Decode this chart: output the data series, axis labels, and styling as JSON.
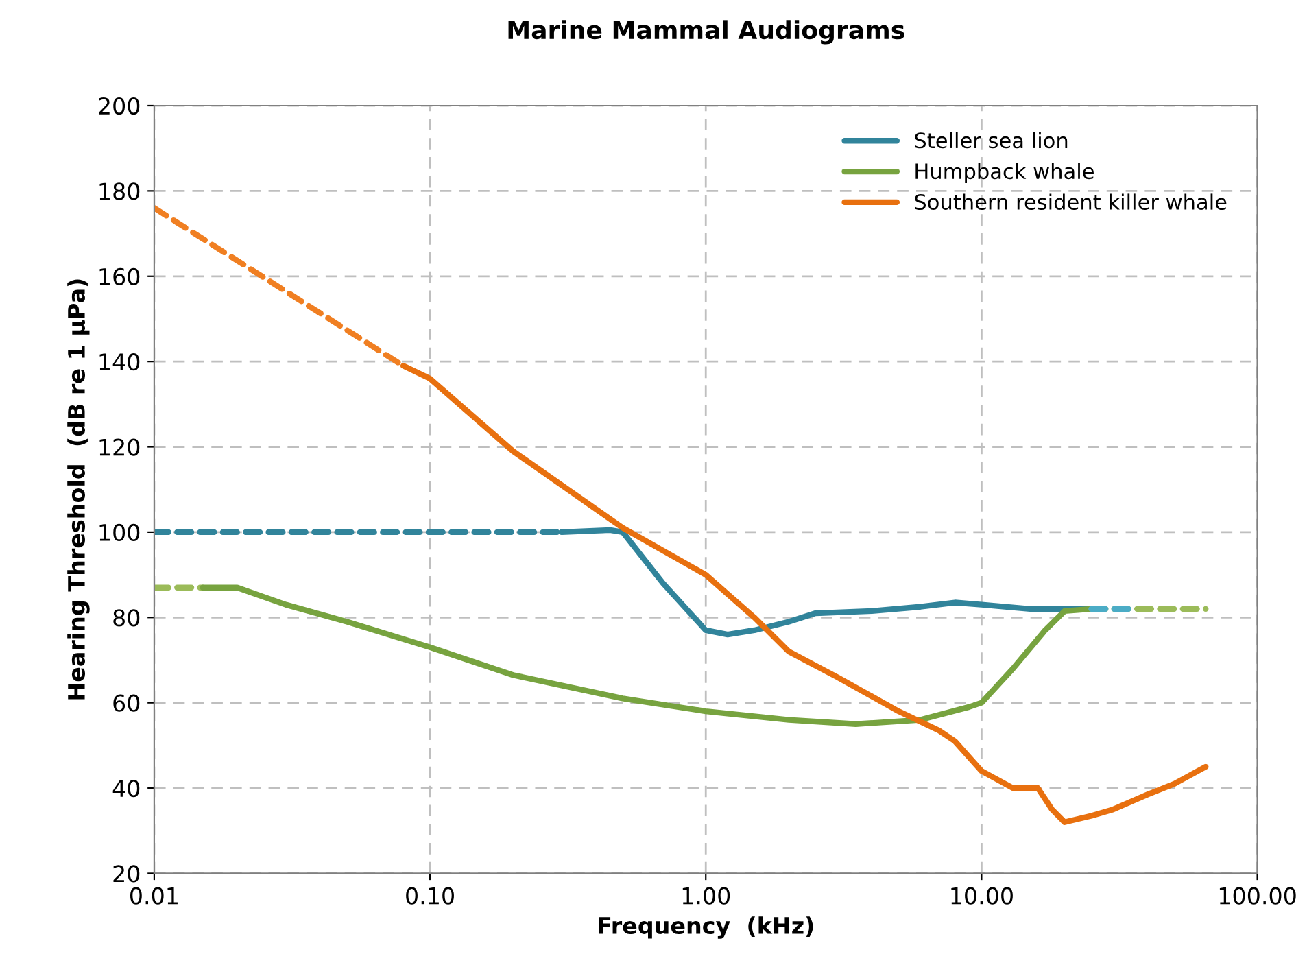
{
  "chart_data": {
    "type": "line",
    "title": "Marine Mammal Audiograms",
    "xlabel": "Frequency  (kHz)",
    "ylabel": "Hearing Threshold  (dB re 1 µPa)",
    "log": "x",
    "xlim": [
      0.01,
      100
    ],
    "xticks": [
      {
        "value": 0.01,
        "label": "0.01"
      },
      {
        "value": 0.1,
        "label": "0.10"
      },
      {
        "value": 1,
        "label": "1.00"
      },
      {
        "value": 10,
        "label": "10.00"
      },
      {
        "value": 100,
        "label": "100.00"
      }
    ],
    "ylim": [
      20,
      200
    ],
    "yticks": [
      20,
      40,
      60,
      80,
      100,
      120,
      140,
      160,
      180,
      200
    ],
    "grid": true,
    "legend": "top right",
    "series": [
      {
        "color": "#31849b",
        "line_style": "dashed",
        "x": [
          0.01,
          0.3
        ],
        "values": [
          100,
          100
        ]
      },
      {
        "name": "Steller sea lion",
        "color": "#31849b",
        "line_style": "solid",
        "x": [
          0.3,
          0.45,
          0.5,
          0.7,
          1.0,
          1.2,
          1.5,
          2,
          2.5,
          4,
          6,
          8,
          10,
          15,
          25
        ],
        "values": [
          100,
          100.5,
          100,
          88,
          77,
          76,
          77,
          79,
          81,
          81.5,
          82.5,
          83.5,
          83,
          82,
          82
        ]
      },
      {
        "color": "#9bbb59",
        "line_style": "dashed",
        "x": [
          0.01,
          0.015
        ],
        "values": [
          87,
          87
        ]
      },
      {
        "name": "Humpback whale",
        "color": "#77a33f",
        "line_style": "solid",
        "x": [
          0.015,
          0.02,
          0.03,
          0.05,
          0.1,
          0.2,
          0.5,
          1,
          2,
          3.5,
          6,
          9,
          10,
          13,
          17,
          20,
          25
        ],
        "values": [
          87,
          87,
          83,
          79,
          73,
          66.5,
          61,
          58,
          56,
          55,
          56,
          59,
          60,
          68,
          77,
          81.5,
          82
        ]
      },
      {
        "color": "#9bbb59",
        "line_style": "dashed",
        "x": [
          25,
          65
        ],
        "values": [
          82,
          82
        ]
      },
      {
        "color": "#4bacc6",
        "line_style": "dashed",
        "x": [
          25,
          35
        ],
        "values": [
          82,
          82
        ]
      },
      {
        "color": "#f07f22",
        "line_style": "dashed",
        "x": [
          0.01,
          0.08
        ],
        "values": [
          176,
          139
        ]
      },
      {
        "name": "Southern resident killer whale",
        "color": "#e8700f",
        "line_style": "solid",
        "x": [
          0.08,
          0.1,
          0.2,
          0.5,
          1,
          1.5,
          2,
          3,
          5,
          7,
          8,
          10,
          13,
          16,
          18,
          20,
          25,
          30,
          40,
          50,
          65
        ],
        "values": [
          139,
          136,
          119,
          101,
          90,
          80,
          72,
          66,
          58,
          53.5,
          51,
          44,
          40,
          40,
          35,
          32,
          33.5,
          35,
          38.5,
          41,
          45
        ]
      }
    ]
  }
}
